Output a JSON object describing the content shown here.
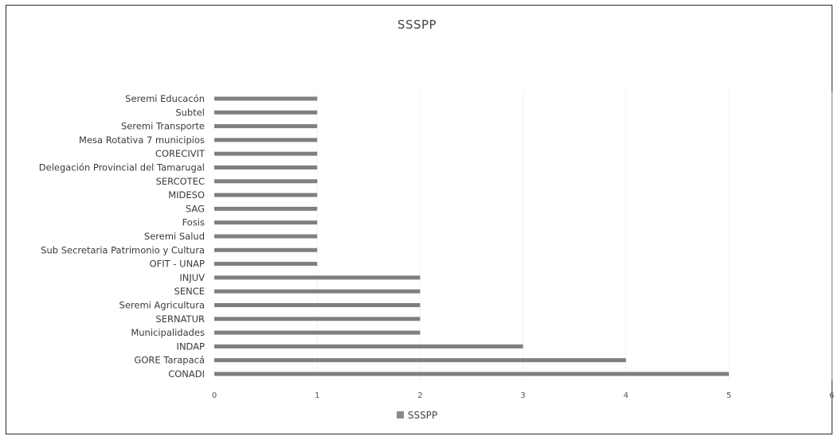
{
  "colors": {
    "bar": "#7f7f7f",
    "grid": "#e6e6e6",
    "text": "#3a3a3a"
  },
  "chart_data": {
    "type": "bar",
    "orientation": "horizontal",
    "title": "SSSPP",
    "xlabel": "",
    "ylabel": "",
    "xlim": [
      0,
      6
    ],
    "x_ticks": [
      "0",
      "1",
      "2",
      "3",
      "4",
      "5",
      "6"
    ],
    "grid": false,
    "legend_position": "bottom",
    "categories": [
      "Seremi Educacón",
      "Subtel",
      "Seremi Transporte",
      "Mesa Rotativa 7 municipios",
      "CORECIVIT",
      "Delegación Provincial del Tamarugal",
      "SERCOTEC",
      "MIDESO",
      "SAG",
      "Fosis",
      "Seremi Salud",
      "Sub Secretaria Patrimonio y Cultura",
      "OFIT - UNAP",
      "INJUV",
      "SENCE",
      "Seremi Agricultura",
      "SERNATUR",
      "Municipalidades",
      "INDAP",
      "GORE Tarapacá",
      "CONADI"
    ],
    "series": [
      {
        "name": "SSSPP",
        "values": [
          1,
          1,
          1,
          1,
          1,
          1,
          1,
          1,
          1,
          1,
          1,
          1,
          1,
          2,
          2,
          2,
          2,
          2,
          3,
          4,
          5
        ]
      }
    ]
  }
}
